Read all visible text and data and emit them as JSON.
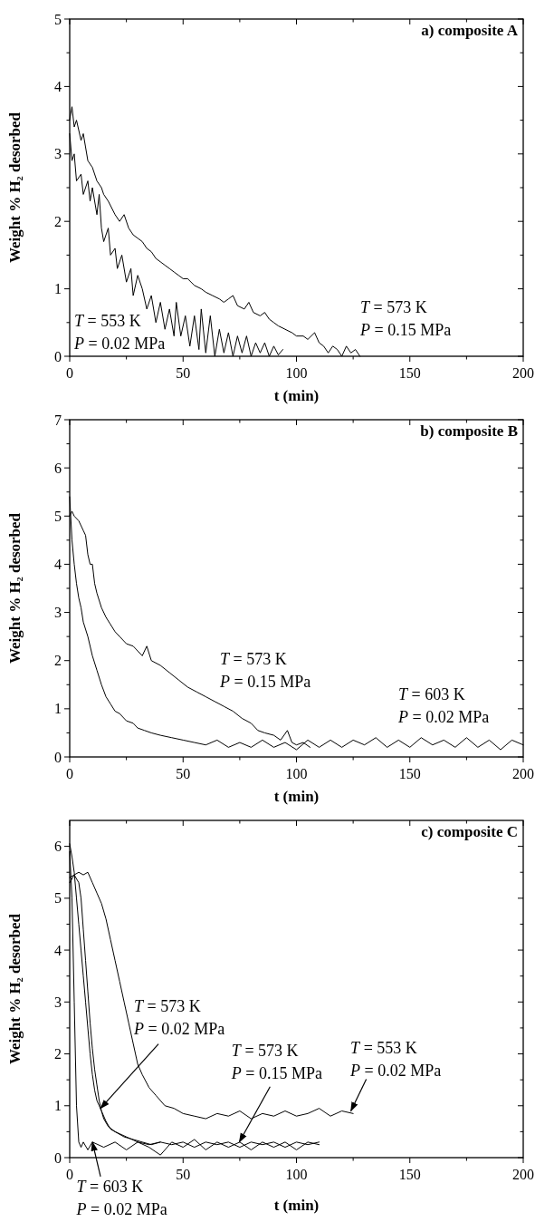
{
  "chart_data": [
    {
      "type": "line",
      "title": "a) composite A",
      "xlabel": "t (min)",
      "ylabel": "Weight % H₂ desorbed",
      "xlim": [
        0,
        200
      ],
      "ylim": [
        0,
        5
      ],
      "xticks": [
        0,
        {
          "value": 25,
          "label": null
        },
        50,
        {
          "value": 75,
          "label": null
        },
        100,
        {
          "value": 125,
          "label": null
        },
        150,
        {
          "value": 175,
          "label": null
        },
        200
      ],
      "yticks": [
        0,
        {
          "value": 0.5,
          "label": null
        },
        1,
        {
          "value": 1.5,
          "label": null
        },
        2,
        {
          "value": 2.5,
          "label": null
        },
        3,
        {
          "value": 3.5,
          "label": null
        },
        4,
        {
          "value": 4.5,
          "label": null
        },
        5
      ],
      "series": [
        {
          "color": "#000000",
          "x": [
            0,
            1,
            2,
            3,
            5,
            6,
            8,
            9,
            10,
            12,
            13,
            14,
            15,
            17,
            18,
            20,
            21,
            23,
            25,
            27,
            28,
            30,
            32,
            34,
            36,
            38,
            40,
            42,
            44,
            46,
            47,
            49,
            51,
            53,
            55,
            57,
            58,
            60,
            62,
            64,
            66,
            68,
            70,
            72,
            74,
            76,
            78,
            80,
            82,
            84,
            86,
            88,
            90,
            92,
            94
          ],
          "values": [
            3.3,
            2.9,
            3.0,
            2.6,
            2.7,
            2.4,
            2.6,
            2.3,
            2.5,
            2.1,
            2.4,
            1.9,
            1.7,
            1.9,
            1.5,
            1.6,
            1.3,
            1.5,
            1.1,
            1.3,
            0.9,
            1.2,
            1.0,
            0.7,
            0.9,
            0.5,
            0.8,
            0.4,
            0.7,
            0.3,
            0.8,
            0.3,
            0.6,
            0.15,
            0.6,
            0.1,
            0.7,
            0.05,
            0.6,
            0,
            0.4,
            0.05,
            0.35,
            0,
            0.3,
            0.05,
            0.3,
            0,
            0.2,
            0.05,
            0.2,
            0,
            0.15,
            0.02,
            0.1
          ]
        },
        {
          "color": "#000000",
          "x": [
            0,
            1,
            2,
            3,
            5,
            6,
            8,
            10,
            12,
            14,
            15,
            17,
            20,
            22,
            24,
            26,
            28,
            30,
            32,
            34,
            36,
            38,
            40,
            42,
            44,
            46,
            48,
            50,
            52,
            55,
            58,
            60,
            63,
            66,
            68,
            70,
            72,
            74,
            77,
            79,
            81,
            84,
            86,
            88,
            90,
            92,
            95,
            98,
            100,
            103,
            105,
            108,
            110,
            112,
            114,
            116,
            118,
            120,
            122,
            124,
            126,
            128
          ],
          "values": [
            3.5,
            3.7,
            3.4,
            3.5,
            3.2,
            3.3,
            2.9,
            2.8,
            2.6,
            2.5,
            2.4,
            2.3,
            2.1,
            2.0,
            2.1,
            1.9,
            1.8,
            1.75,
            1.7,
            1.6,
            1.55,
            1.45,
            1.4,
            1.35,
            1.3,
            1.25,
            1.2,
            1.15,
            1.15,
            1.05,
            1.0,
            0.95,
            0.9,
            0.85,
            0.8,
            0.85,
            0.9,
            0.75,
            0.7,
            0.8,
            0.65,
            0.6,
            0.65,
            0.55,
            0.5,
            0.45,
            0.4,
            0.35,
            0.3,
            0.3,
            0.25,
            0.35,
            0.2,
            0.15,
            0.05,
            0.15,
            0.1,
            0,
            0.15,
            0.05,
            0.1,
            0
          ]
        }
      ],
      "annotations": [
        "T = 553 K\nP = 0.02 MPa",
        "T = 573 K\nP = 0.15 MPa"
      ]
    },
    {
      "type": "line",
      "title": "b) composite B",
      "xlabel": "t (min)",
      "ylabel": "Weight % H₂ desorbed",
      "xlim": [
        0,
        200
      ],
      "ylim": [
        0,
        7
      ],
      "xticks": [
        0,
        {
          "value": 25,
          "label": null
        },
        50,
        {
          "value": 75,
          "label": null
        },
        100,
        {
          "value": 125,
          "label": null
        },
        150,
        {
          "value": 175,
          "label": null
        },
        200
      ],
      "yticks": [
        0,
        {
          "value": 0.5,
          "label": null
        },
        1,
        {
          "value": 1.5,
          "label": null
        },
        2,
        {
          "value": 2.5,
          "label": null
        },
        3,
        {
          "value": 3.5,
          "label": null
        },
        4,
        {
          "value": 4.5,
          "label": null
        },
        5,
        {
          "value": 5.5,
          "label": null
        },
        6,
        {
          "value": 6.5,
          "label": null
        },
        7
      ],
      "series": [
        {
          "color": "#000000",
          "x": [
            0,
            1,
            2,
            3,
            4,
            5,
            6,
            8,
            10,
            12,
            14,
            16,
            18,
            20,
            22,
            25,
            28,
            30,
            33,
            36,
            40,
            45,
            50,
            55,
            60,
            65,
            70,
            75,
            80,
            85,
            90,
            95,
            100,
            105,
            110,
            115,
            120,
            125,
            130,
            135,
            140,
            145,
            150,
            155,
            160,
            165,
            170,
            175,
            180,
            185,
            190,
            195,
            200
          ],
          "values": [
            5.4,
            4.5,
            4.0,
            3.6,
            3.3,
            3.1,
            2.8,
            2.5,
            2.1,
            1.8,
            1.5,
            1.25,
            1.1,
            0.95,
            0.9,
            0.75,
            0.7,
            0.6,
            0.55,
            0.5,
            0.45,
            0.4,
            0.35,
            0.3,
            0.25,
            0.35,
            0.2,
            0.3,
            0.2,
            0.35,
            0.2,
            0.3,
            0.15,
            0.35,
            0.2,
            0.35,
            0.2,
            0.35,
            0.25,
            0.4,
            0.2,
            0.35,
            0.2,
            0.4,
            0.25,
            0.35,
            0.2,
            0.4,
            0.2,
            0.35,
            0.15,
            0.35,
            0.25
          ]
        },
        {
          "color": "#000000",
          "x": [
            0,
            1,
            2,
            4,
            6,
            7,
            8,
            9,
            10,
            11,
            12,
            14,
            16,
            18,
            20,
            22,
            25,
            28,
            30,
            32,
            34,
            36,
            40,
            44,
            48,
            52,
            56,
            60,
            64,
            68,
            72,
            76,
            80,
            83,
            86,
            90,
            93,
            96,
            98,
            100,
            103,
            106
          ],
          "values": [
            5.0,
            5.1,
            5.0,
            4.9,
            4.7,
            4.6,
            4.2,
            4.0,
            4.0,
            3.6,
            3.4,
            3.1,
            2.9,
            2.75,
            2.6,
            2.5,
            2.35,
            2.3,
            2.2,
            2.1,
            2.3,
            2.0,
            1.9,
            1.75,
            1.6,
            1.45,
            1.35,
            1.25,
            1.15,
            1.05,
            0.95,
            0.8,
            0.7,
            0.55,
            0.5,
            0.45,
            0.35,
            0.55,
            0.3,
            0.25,
            0.3,
            0.2
          ]
        }
      ],
      "annotations": [
        "T = 573 K\nP = 0.15 MPa",
        "T = 603 K\nP = 0.02 MPa"
      ]
    },
    {
      "type": "line",
      "title": "c) composite C",
      "xlabel": "t (min)",
      "ylabel": "Weight % H₂ desorbed",
      "xlim": [
        0,
        200
      ],
      "ylim": [
        0,
        6.5
      ],
      "xticks": [
        0,
        {
          "value": 25,
          "label": null
        },
        50,
        {
          "value": 75,
          "label": null
        },
        100,
        {
          "value": 125,
          "label": null
        },
        150,
        {
          "value": 175,
          "label": null
        },
        200
      ],
      "yticks": [
        0,
        {
          "value": 0.5,
          "label": null
        },
        1,
        {
          "value": 1.5,
          "label": null
        },
        2,
        {
          "value": 2.5,
          "label": null
        },
        3,
        {
          "value": 3.5,
          "label": null
        },
        4,
        {
          "value": 4.5,
          "label": null
        },
        5,
        {
          "value": 5.5,
          "label": null
        },
        6
      ],
      "series": [
        {
          "color": "#000000",
          "x": [
            0,
            1,
            2,
            3,
            4,
            5,
            6,
            8,
            10,
            15,
            20,
            25,
            30,
            35,
            40,
            45,
            50,
            55,
            60,
            65,
            70,
            75,
            80,
            85,
            90,
            95,
            100,
            105,
            110
          ],
          "values": [
            5.9,
            5.0,
            3.0,
            1.0,
            0.3,
            0.2,
            0.3,
            0.15,
            0.3,
            0.2,
            0.3,
            0.15,
            0.3,
            0.2,
            0.05,
            0.3,
            0.2,
            0.35,
            0.15,
            0.3,
            0.2,
            0.3,
            0.15,
            0.3,
            0.2,
            0.3,
            0.15,
            0.3,
            0.25
          ]
        },
        {
          "color": "#000000",
          "x": [
            0,
            1,
            2,
            3,
            4,
            5,
            6,
            7,
            8,
            9,
            10,
            11,
            12,
            13,
            14,
            16,
            18,
            20,
            24,
            28,
            32,
            36,
            40
          ],
          "values": [
            6.05,
            5.8,
            5.5,
            5.0,
            4.5,
            4.0,
            3.5,
            3.0,
            2.5,
            2.0,
            1.6,
            1.3,
            1.1,
            1.0,
            0.9,
            0.7,
            0.55,
            0.5,
            0.4,
            0.35,
            0.3,
            0.25,
            0.3
          ]
        },
        {
          "color": "#000000",
          "x": [
            0,
            2,
            4,
            5,
            6,
            7,
            8,
            9,
            10,
            11,
            12,
            13,
            14,
            15,
            17,
            20,
            25,
            30,
            35,
            40,
            45,
            50,
            55,
            60,
            65,
            70,
            75,
            80,
            85,
            90,
            95,
            100,
            105,
            110
          ],
          "values": [
            5.4,
            5.45,
            5.3,
            5.0,
            4.4,
            3.8,
            3.2,
            2.6,
            2.1,
            1.7,
            1.4,
            1.1,
            0.9,
            0.75,
            0.6,
            0.5,
            0.4,
            0.3,
            0.25,
            0.3,
            0.25,
            0.3,
            0.2,
            0.3,
            0.25,
            0.3,
            0.2,
            0.3,
            0.25,
            0.3,
            0.2,
            0.3,
            0.25,
            0.3
          ]
        },
        {
          "color": "#000000",
          "x": [
            0,
            2,
            4,
            6,
            8,
            10,
            12,
            14,
            16,
            18,
            20,
            22,
            24,
            26,
            28,
            30,
            32,
            35,
            38,
            42,
            46,
            50,
            55,
            60,
            65,
            70,
            75,
            80,
            85,
            90,
            95,
            100,
            105,
            110,
            115,
            120,
            125
          ],
          "values": [
            5.3,
            5.45,
            5.5,
            5.45,
            5.5,
            5.3,
            5.1,
            4.9,
            4.6,
            4.2,
            3.8,
            3.4,
            3.0,
            2.6,
            2.2,
            1.8,
            1.6,
            1.35,
            1.2,
            1.0,
            0.95,
            0.85,
            0.8,
            0.75,
            0.85,
            0.8,
            0.9,
            0.75,
            0.85,
            0.8,
            0.9,
            0.8,
            0.85,
            0.95,
            0.8,
            0.9,
            0.85
          ]
        }
      ],
      "annotations": [
        {
          "text": "T = 573 K\nP = 0.02 MPa",
          "x": 13.6,
          "y": 0.95
        },
        {
          "text": "T = 573 K\nP = 0.15 MPa",
          "x": 74.8,
          "y": 0.3
        },
        {
          "text": "T = 553 K\nP = 0.02 MPa",
          "x": 124,
          "y": 0.9
        },
        {
          "text": "T = 603 K\nP = 0.02 MPa",
          "x": 10,
          "y": 0.3
        }
      ]
    }
  ]
}
